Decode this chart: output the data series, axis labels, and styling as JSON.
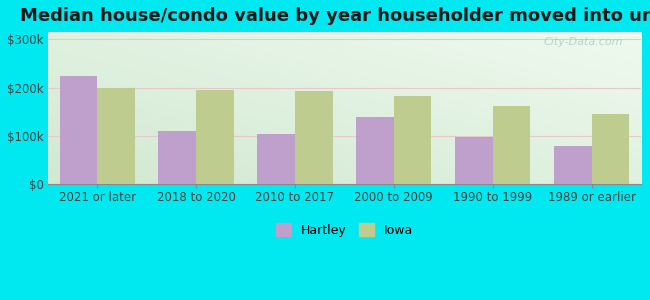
{
  "title": "Median house/condo value by year householder moved into unit",
  "categories": [
    "2021 or later",
    "2018 to 2020",
    "2010 to 2017",
    "2000 to 2009",
    "1990 to 1999",
    "1989 or earlier"
  ],
  "hartley_values": [
    225000,
    110000,
    105000,
    140000,
    97000,
    80000
  ],
  "iowa_values": [
    200000,
    195000,
    193000,
    182000,
    162000,
    145000
  ],
  "hartley_color": "#bf9fcc",
  "iowa_color": "#bfcc8f",
  "background_outer": "#00e8f0",
  "yticks": [
    0,
    100000,
    200000,
    300000
  ],
  "ytick_labels": [
    "$0",
    "$100k",
    "$200k",
    "$300k"
  ],
  "ylim": [
    0,
    315000
  ],
  "watermark": "City-Data.com",
  "legend_labels": [
    "Hartley",
    "Iowa"
  ],
  "bar_width": 0.38,
  "title_fontsize": 13,
  "tick_fontsize": 8.5
}
